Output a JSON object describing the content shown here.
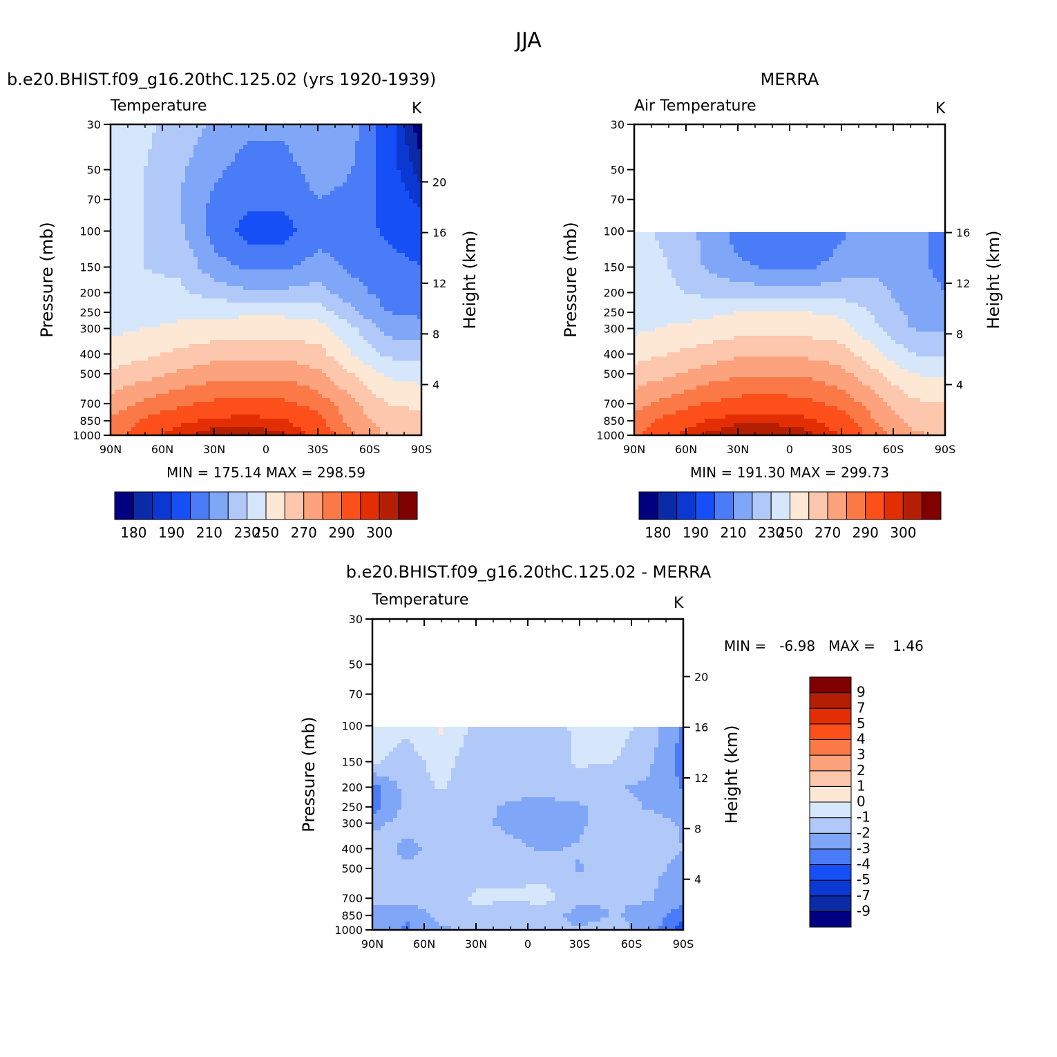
{
  "figure": {
    "title": "JJA",
    "diff_title": "b.e20.BHIST.f09_g16.20thC.125.02 - MERRA"
  },
  "chart_data": [
    {
      "type": "heatmap",
      "panel_title": "b.e20.BHIST.f09_g16.20thC.125.02 (yrs 1920-1939)",
      "field_label": "Temperature",
      "units": "K",
      "ylabel": "Pressure (mb)",
      "y2label": "Height (km)",
      "x_ticks": [
        "90N",
        "60N",
        "30N",
        "0",
        "30S",
        "60S",
        "90S"
      ],
      "y_ticks": [
        "30",
        "50",
        "70",
        "100",
        "150",
        "200",
        "250",
        "300",
        "400",
        "500",
        "700",
        "850",
        "1000"
      ],
      "y2_ticks": [
        "20",
        "16",
        "12",
        "8",
        "4"
      ],
      "stat_text": "MIN = 175.14   MAX = 298.59",
      "min": 175.14,
      "max": 298.59,
      "contour_levels": [
        180,
        185,
        190,
        200,
        210,
        220,
        230,
        240,
        250,
        260,
        270,
        280,
        290,
        295,
        300
      ],
      "colorbar_labels": [
        "180",
        "190",
        "210",
        "230",
        "250",
        "270",
        "290",
        "300"
      ],
      "data_top_mb": 30,
      "lat": [
        90,
        70,
        50,
        30,
        10,
        -10,
        -30,
        -50,
        -70,
        -90
      ],
      "p": [
        30,
        50,
        70,
        100,
        150,
        200,
        250,
        300,
        400,
        500,
        700,
        850,
        1000
      ],
      "values": [
        [
          232,
          232,
          226,
          218,
          212,
          212,
          220,
          214,
          194,
          176
        ],
        [
          232,
          230,
          222,
          212,
          206,
          206,
          214,
          210,
          194,
          182
        ],
        [
          232,
          230,
          220,
          208,
          202,
          202,
          210,
          208,
          196,
          188
        ],
        [
          232,
          230,
          222,
          206,
          196,
          196,
          206,
          206,
          198,
          194
        ],
        [
          232,
          230,
          228,
          214,
          208,
          208,
          214,
          208,
          204,
          200
        ],
        [
          232,
          232,
          232,
          226,
          222,
          222,
          224,
          214,
          206,
          204
        ],
        [
          234,
          236,
          238,
          238,
          238,
          238,
          236,
          222,
          210,
          208
        ],
        [
          238,
          240,
          242,
          244,
          245,
          245,
          244,
          232,
          216,
          214
        ],
        [
          244,
          248,
          252,
          256,
          257,
          257,
          254,
          240,
          228,
          226
        ],
        [
          252,
          256,
          262,
          266,
          267,
          267,
          262,
          250,
          238,
          236
        ],
        [
          264,
          272,
          278,
          282,
          283,
          282,
          276,
          262,
          250,
          248
        ],
        [
          272,
          282,
          288,
          292,
          293,
          291,
          284,
          266,
          255,
          252
        ],
        [
          276,
          286,
          294,
          298,
          298,
          296,
          288,
          272,
          258,
          256
        ]
      ]
    },
    {
      "type": "heatmap",
      "panel_title": "MERRA",
      "field_label": "Air Temperature",
      "units": "K",
      "ylabel": "Pressure (mb)",
      "y2label": "Height (km)",
      "x_ticks": [
        "90N",
        "60N",
        "30N",
        "0",
        "30S",
        "60S",
        "90S"
      ],
      "y_ticks": [
        "30",
        "50",
        "70",
        "100",
        "150",
        "200",
        "250",
        "300",
        "400",
        "500",
        "700",
        "850",
        "1000"
      ],
      "y2_ticks": [
        "16",
        "12",
        "8",
        "4"
      ],
      "stat_text": "MIN = 191.30   MAX = 299.73",
      "min": 191.3,
      "max": 299.73,
      "contour_levels": [
        180,
        185,
        190,
        200,
        210,
        220,
        230,
        240,
        250,
        260,
        270,
        280,
        290,
        295,
        300
      ],
      "colorbar_labels": [
        "180",
        "190",
        "210",
        "230",
        "250",
        "270",
        "290",
        "300"
      ],
      "data_top_mb": 100,
      "lat": [
        90,
        70,
        50,
        30,
        10,
        -10,
        -30,
        -50,
        -70,
        -90
      ],
      "p": [
        30,
        50,
        70,
        100,
        150,
        200,
        250,
        300,
        400,
        500,
        700,
        850,
        1000
      ],
      "values": [
        [
          null,
          null,
          null,
          null,
          null,
          null,
          null,
          null,
          null,
          null
        ],
        [
          null,
          null,
          null,
          null,
          null,
          null,
          null,
          null,
          null,
          null
        ],
        [
          null,
          null,
          null,
          null,
          null,
          null,
          null,
          null,
          null,
          null
        ],
        [
          232,
          228,
          218,
          206,
          200,
          200,
          208,
          218,
          212,
          208
        ],
        [
          236,
          230,
          220,
          212,
          208,
          208,
          214,
          218,
          212,
          208
        ],
        [
          234,
          232,
          228,
          226,
          224,
          224,
          226,
          224,
          214,
          210
        ],
        [
          234,
          236,
          238,
          240,
          240,
          240,
          238,
          228,
          218,
          216
        ],
        [
          238,
          241,
          243,
          246,
          247,
          246,
          244,
          232,
          220,
          218
        ],
        [
          246,
          250,
          254,
          258,
          259,
          258,
          255,
          242,
          230,
          228
        ],
        [
          254,
          258,
          264,
          268,
          269,
          268,
          263,
          252,
          240,
          238
        ],
        [
          266,
          274,
          280,
          284,
          285,
          283,
          277,
          264,
          252,
          250
        ],
        [
          274,
          284,
          290,
          294,
          294,
          292,
          285,
          270,
          258,
          255
        ],
        [
          278,
          288,
          296,
          299,
          299,
          297,
          290,
          276,
          262,
          258
        ]
      ]
    },
    {
      "type": "heatmap",
      "panel_title": "b.e20.BHIST.f09_g16.20thC.125.02 - MERRA",
      "field_label": "Temperature",
      "units": "K",
      "ylabel": "Pressure (mb)",
      "y2label": "Height (km)",
      "x_ticks": [
        "90N",
        "60N",
        "30N",
        "0",
        "30S",
        "60S",
        "90S"
      ],
      "y_ticks": [
        "30",
        "50",
        "70",
        "100",
        "150",
        "200",
        "250",
        "300",
        "400",
        "500",
        "700",
        "850",
        "1000"
      ],
      "y2_ticks": [
        "20",
        "16",
        "12",
        "8",
        "4"
      ],
      "stat_text": "MIN =   -6.98   MAX =    1.46",
      "min": -6.98,
      "max": 1.46,
      "contour_levels": [
        -9,
        -7,
        -5,
        -4,
        -3,
        -2,
        -1,
        0,
        1,
        2,
        3,
        4,
        5,
        7,
        9
      ],
      "colorbar_labels": [
        "9",
        "7",
        "5",
        "4",
        "3",
        "2",
        "1",
        "0",
        "-1",
        "-2",
        "-3",
        "-4",
        "-5",
        "-7",
        "-9"
      ],
      "data_top_mb": 100,
      "lat": [
        90,
        70,
        50,
        30,
        10,
        -10,
        -30,
        -50,
        -70,
        -90
      ],
      "p": [
        30,
        50,
        70,
        100,
        150,
        200,
        250,
        300,
        400,
        500,
        700,
        850,
        1000
      ],
      "values": [
        [
          null,
          null,
          null,
          null,
          null,
          null,
          null,
          null,
          null,
          null
        ],
        [
          null,
          null,
          null,
          null,
          null,
          null,
          null,
          null,
          null,
          null
        ],
        [
          null,
          null,
          null,
          null,
          null,
          null,
          null,
          null,
          null,
          null
        ],
        [
          -0.6,
          -0.8,
          0.2,
          -1.4,
          -1.6,
          -1.9,
          -0.6,
          -0.4,
          -1.4,
          -3.2
        ],
        [
          -0.8,
          -1.4,
          -0.6,
          -1.6,
          -1.7,
          -1.6,
          -0.8,
          -1.0,
          -1.8,
          -3.4
        ],
        [
          -3.4,
          -1.6,
          -0.9,
          -1.6,
          -1.8,
          -1.8,
          -1.6,
          -1.9,
          -2.2,
          -3.1
        ],
        [
          -3.6,
          -1.6,
          -1.7,
          -1.8,
          -2.1,
          -2.2,
          -2.1,
          -1.6,
          -2.1,
          -2.4
        ],
        [
          -2.2,
          -1.7,
          -1.9,
          -1.8,
          -2.2,
          -2.4,
          -2.2,
          -1.2,
          -1.6,
          -2.1
        ],
        [
          -1.6,
          -2.2,
          -1.7,
          -1.6,
          -1.8,
          -2.1,
          -1.9,
          -1.2,
          -1.7,
          -2.0
        ],
        [
          -1.4,
          -1.9,
          -1.6,
          -1.5,
          -1.2,
          -1.4,
          -2.1,
          -1.6,
          -1.8,
          -2.2
        ],
        [
          -1.6,
          -1.5,
          -1.6,
          -0.8,
          -0.9,
          -0.7,
          -1.6,
          -2.0,
          -1.9,
          -2.6
        ],
        [
          -2.4,
          -2.8,
          -1.6,
          -1.2,
          -1.6,
          -1.5,
          -2.5,
          -1.9,
          -2.3,
          -3.6
        ],
        [
          -2.2,
          -3.2,
          -2.2,
          -1.8,
          -1.4,
          -1.7,
          -1.8,
          -1.6,
          -2.4,
          -4.6
        ]
      ]
    }
  ],
  "colors": {
    "palette": [
      "#000080",
      "#0a2aa6",
      "#0b37d3",
      "#174ff6",
      "#4a7cf7",
      "#80a6f8",
      "#b1c9f9",
      "#d6e6fb",
      "#fde8d6",
      "#fcc7ad",
      "#fca27c",
      "#fb7847",
      "#fc4f1a",
      "#e32e04",
      "#b41f04",
      "#800000"
    ]
  }
}
